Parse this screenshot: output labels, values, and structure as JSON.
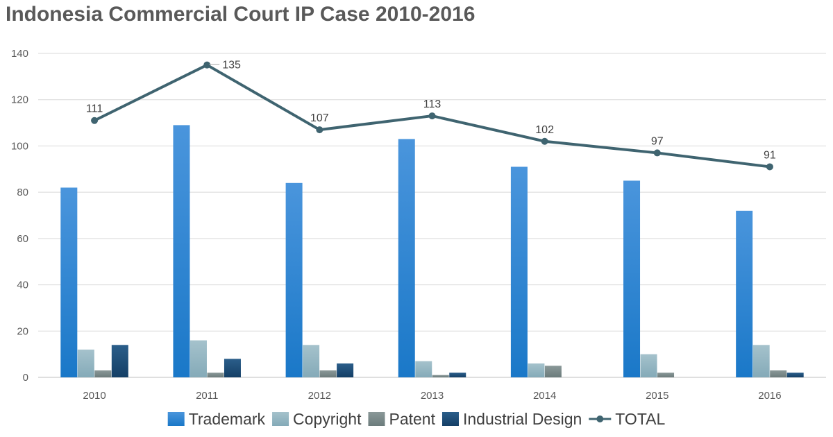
{
  "chart_data": {
    "type": "bar",
    "title": "Indonesia Commercial Court IP Case 2010-2016",
    "categories": [
      "2010",
      "2011",
      "2012",
      "2013",
      "2014",
      "2015",
      "2016"
    ],
    "ylim": [
      0,
      140
    ],
    "yticks": [
      0,
      20,
      40,
      60,
      80,
      100,
      120,
      140
    ],
    "grid": true,
    "legend": "bottom",
    "series": [
      {
        "name": "Trademark",
        "kind": "bar",
        "values": [
          82,
          109,
          84,
          103,
          91,
          85,
          72
        ],
        "color": "#2f86d6"
      },
      {
        "name": "Copyright",
        "kind": "bar",
        "values": [
          12,
          16,
          14,
          7,
          6,
          10,
          14
        ],
        "color": "#8fb4c2"
      },
      {
        "name": "Patent",
        "kind": "bar",
        "values": [
          3,
          2,
          3,
          1,
          5,
          2,
          3
        ],
        "color": "#7a8a8a"
      },
      {
        "name": "Industrial Design",
        "kind": "bar",
        "values": [
          14,
          8,
          6,
          2,
          0,
          0,
          2
        ],
        "color": "#1d4f7a"
      },
      {
        "name": "TOTAL",
        "kind": "line",
        "values": [
          111,
          135,
          107,
          113,
          102,
          97,
          91
        ],
        "color": "#3f6470",
        "data_labels": [
          "111",
          "135",
          "107",
          "113",
          "102",
          "97",
          "91"
        ]
      }
    ]
  }
}
